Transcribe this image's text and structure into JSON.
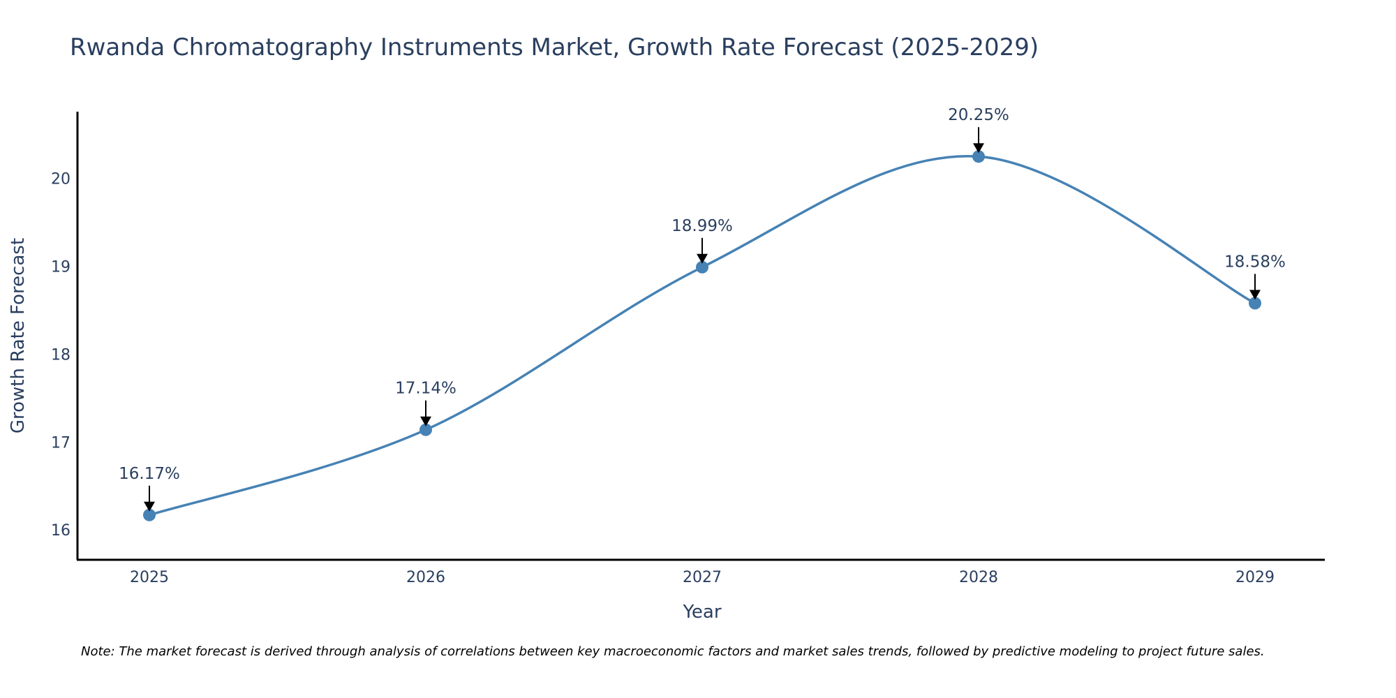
{
  "chart_data": {
    "type": "line",
    "title": "Rwanda Chromatography Instruments Market, Growth Rate Forecast (2025-2029)",
    "xlabel": "Year",
    "ylabel": "Growth Rate Forecast",
    "categories": [
      "2025",
      "2026",
      "2027",
      "2028",
      "2029"
    ],
    "series": [
      {
        "name": "Growth Rate Forecast",
        "values": [
          16.17,
          17.14,
          18.99,
          20.25,
          18.58
        ],
        "labels": [
          "16.17%",
          "17.14%",
          "18.99%",
          "20.25%",
          "18.58%"
        ]
      }
    ],
    "y_ticks": [
      16,
      17,
      18,
      19,
      20
    ],
    "ylim": [
      15.66,
      20.76
    ],
    "grid": false,
    "line_shape": "spline",
    "note": "Note: The market forecast is derived through analysis of correlations between key macroeconomic factors and market sales trends, followed by predictive modeling to project future sales.",
    "colors": {
      "line": "#4682b4",
      "marker": "#4682b4",
      "axis": "#000000",
      "text": "#2a3f5f",
      "arrow": "#000000"
    }
  }
}
